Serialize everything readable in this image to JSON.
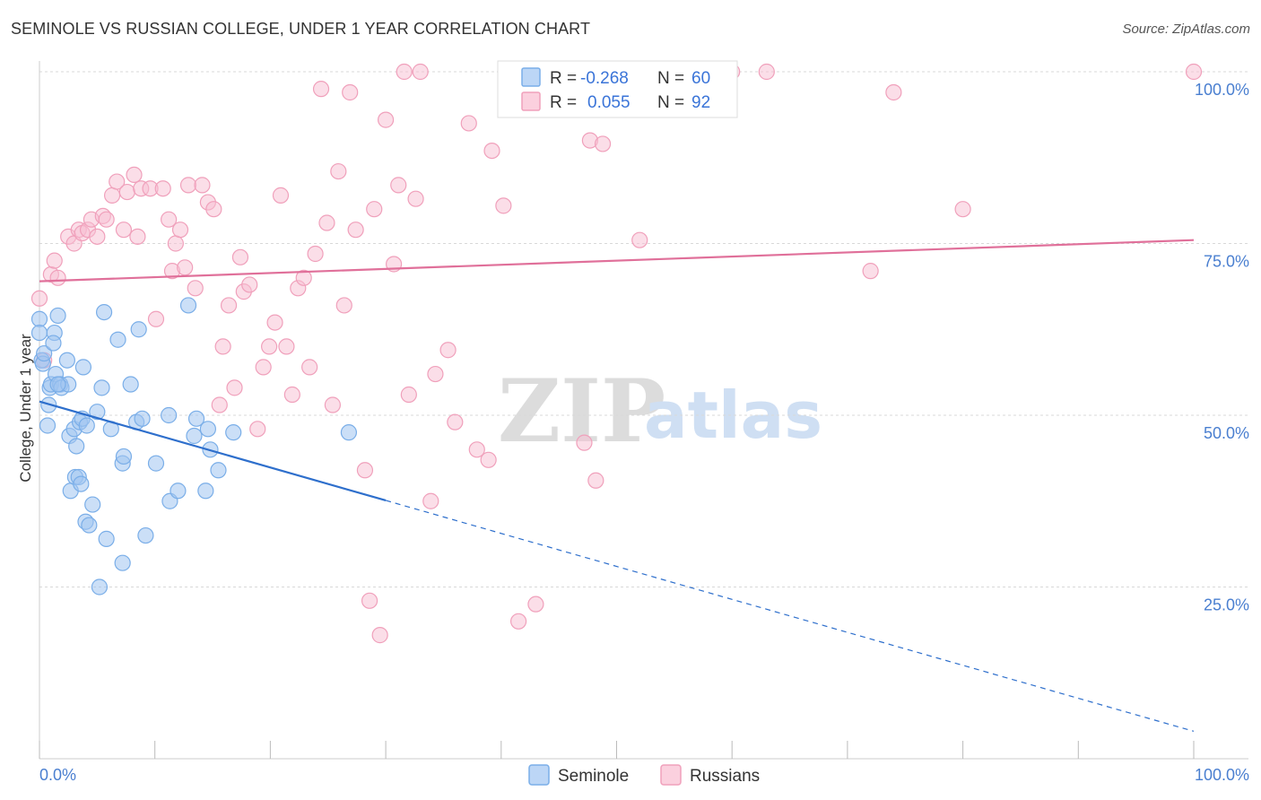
{
  "title": "SEMINOLE VS RUSSIAN COLLEGE, UNDER 1 YEAR CORRELATION CHART",
  "source": "Source: ZipAtlas.com",
  "watermark": {
    "zip": "ZIP",
    "atlas": "atlas"
  },
  "legend": {
    "r_label": "R =",
    "n_label": "N =",
    "rows": [
      {
        "series": "Seminole",
        "r": "-0.268",
        "n": "60"
      },
      {
        "series": "Russians",
        "r": "0.055",
        "n": "92"
      }
    ]
  },
  "chart_data": {
    "type": "scatter",
    "title": "SEMINOLE VS RUSSIAN COLLEGE, UNDER 1 YEAR CORRELATION CHART",
    "xlabel": "",
    "ylabel": "College, Under 1 year",
    "xlim": [
      0,
      100
    ],
    "ylim": [
      0,
      100
    ],
    "x_tick_labels": [
      "0.0%",
      "100.0%"
    ],
    "y_tick_labels": [
      {
        "value": 100,
        "label": "100.0%"
      },
      {
        "value": 75,
        "label": "75.0%"
      },
      {
        "value": 50,
        "label": "50.0%"
      },
      {
        "value": 25,
        "label": "25.0%"
      }
    ],
    "colors": {
      "Seminole": "#7aaee8",
      "Russians": "#f0a0bb",
      "Seminole_line": "#2e6fcc",
      "Russians_line": "#e0709a"
    },
    "series": [
      {
        "name": "Seminole",
        "trend": {
          "x0": 0,
          "y0": 52.0,
          "x1": 100,
          "y1": 4.0,
          "solid_until_x": 30
        },
        "points": [
          [
            0.0,
            64.0
          ],
          [
            0.0,
            62.0
          ],
          [
            0.2,
            58.0
          ],
          [
            0.3,
            57.5
          ],
          [
            0.4,
            59.0
          ],
          [
            0.7,
            48.5
          ],
          [
            0.8,
            51.5
          ],
          [
            0.9,
            54.0
          ],
          [
            1.0,
            54.5
          ],
          [
            1.3,
            62.0
          ],
          [
            1.2,
            60.5
          ],
          [
            1.4,
            56.0
          ],
          [
            1.6,
            64.5
          ],
          [
            1.8,
            54.5
          ],
          [
            1.9,
            54.0
          ],
          [
            2.4,
            58.0
          ],
          [
            2.5,
            54.5
          ],
          [
            2.6,
            47.0
          ],
          [
            2.7,
            39.0
          ],
          [
            3.0,
            48.0
          ],
          [
            3.1,
            41.0
          ],
          [
            3.2,
            45.5
          ],
          [
            3.4,
            41.0
          ],
          [
            3.5,
            49.0
          ],
          [
            3.6,
            40.0
          ],
          [
            3.7,
            49.5
          ],
          [
            3.8,
            57.0
          ],
          [
            4.0,
            34.5
          ],
          [
            4.1,
            48.5
          ],
          [
            4.3,
            34.0
          ],
          [
            4.6,
            37.0
          ],
          [
            5.0,
            50.5
          ],
          [
            5.2,
            25.0
          ],
          [
            5.4,
            54.0
          ],
          [
            5.6,
            65.0
          ],
          [
            5.8,
            32.0
          ],
          [
            6.2,
            48.0
          ],
          [
            6.8,
            61.0
          ],
          [
            7.2,
            43.0
          ],
          [
            7.3,
            44.0
          ],
          [
            7.2,
            28.5
          ],
          [
            7.9,
            54.5
          ],
          [
            8.4,
            49.0
          ],
          [
            8.6,
            62.5
          ],
          [
            8.9,
            49.5
          ],
          [
            9.2,
            32.5
          ],
          [
            10.1,
            43.0
          ],
          [
            11.2,
            50.0
          ],
          [
            11.3,
            37.5
          ],
          [
            12.0,
            39.0
          ],
          [
            12.9,
            66.0
          ],
          [
            13.4,
            47.0
          ],
          [
            13.6,
            49.5
          ],
          [
            14.4,
            39.0
          ],
          [
            14.6,
            48.0
          ],
          [
            14.8,
            45.0
          ],
          [
            15.5,
            42.0
          ],
          [
            16.8,
            47.5
          ],
          [
            26.8,
            47.5
          ],
          [
            1.6,
            54.5
          ]
        ]
      },
      {
        "name": "Russians",
        "trend": {
          "x0": 0,
          "y0": 69.5,
          "x1": 100,
          "y1": 75.5,
          "solid_until_x": 100
        },
        "points": [
          [
            0.0,
            67.0
          ],
          [
            0.4,
            58.0
          ],
          [
            1.0,
            70.5
          ],
          [
            1.3,
            72.5
          ],
          [
            1.6,
            70.0
          ],
          [
            2.5,
            76.0
          ],
          [
            3.0,
            75.0
          ],
          [
            3.4,
            77.0
          ],
          [
            3.7,
            76.5
          ],
          [
            4.2,
            77.0
          ],
          [
            4.5,
            78.5
          ],
          [
            5.0,
            76.0
          ],
          [
            5.5,
            79.0
          ],
          [
            5.8,
            78.5
          ],
          [
            6.3,
            82.0
          ],
          [
            6.7,
            84.0
          ],
          [
            7.3,
            77.0
          ],
          [
            7.6,
            82.5
          ],
          [
            8.2,
            85.0
          ],
          [
            8.5,
            76.0
          ],
          [
            8.8,
            83.0
          ],
          [
            9.6,
            83.0
          ],
          [
            10.1,
            64.0
          ],
          [
            10.7,
            83.0
          ],
          [
            11.2,
            78.5
          ],
          [
            11.5,
            71.0
          ],
          [
            11.8,
            75.0
          ],
          [
            12.2,
            77.0
          ],
          [
            12.6,
            71.5
          ],
          [
            12.9,
            83.5
          ],
          [
            13.5,
            68.5
          ],
          [
            14.1,
            83.5
          ],
          [
            14.6,
            81.0
          ],
          [
            15.1,
            80.0
          ],
          [
            15.6,
            51.5
          ],
          [
            15.9,
            60.0
          ],
          [
            16.4,
            66.0
          ],
          [
            16.9,
            54.0
          ],
          [
            17.4,
            73.0
          ],
          [
            17.7,
            68.0
          ],
          [
            18.2,
            69.0
          ],
          [
            18.9,
            48.0
          ],
          [
            19.4,
            57.0
          ],
          [
            19.9,
            60.0
          ],
          [
            20.4,
            63.5
          ],
          [
            20.9,
            82.0
          ],
          [
            21.4,
            60.0
          ],
          [
            21.9,
            53.0
          ],
          [
            22.4,
            68.5
          ],
          [
            22.9,
            70.0
          ],
          [
            23.4,
            57.0
          ],
          [
            23.9,
            73.5
          ],
          [
            24.4,
            97.5
          ],
          [
            24.9,
            78.0
          ],
          [
            25.4,
            51.5
          ],
          [
            25.9,
            85.5
          ],
          [
            26.4,
            66.0
          ],
          [
            26.9,
            97.0
          ],
          [
            27.4,
            77.0
          ],
          [
            28.2,
            42.0
          ],
          [
            28.6,
            23.0
          ],
          [
            29.0,
            80.0
          ],
          [
            29.5,
            18.0
          ],
          [
            30.0,
            93.0
          ],
          [
            30.7,
            72.0
          ],
          [
            31.1,
            83.5
          ],
          [
            31.6,
            100.0
          ],
          [
            32.0,
            53.0
          ],
          [
            32.6,
            81.5
          ],
          [
            33.0,
            100.0
          ],
          [
            33.9,
            37.5
          ],
          [
            34.3,
            56.0
          ],
          [
            35.4,
            59.5
          ],
          [
            36.0,
            49.0
          ],
          [
            37.2,
            92.5
          ],
          [
            37.9,
            45.0
          ],
          [
            38.9,
            43.5
          ],
          [
            39.2,
            88.5
          ],
          [
            40.2,
            80.5
          ],
          [
            41.5,
            20.0
          ],
          [
            43.0,
            22.5
          ],
          [
            46.0,
            100.0
          ],
          [
            47.2,
            46.0
          ],
          [
            47.7,
            90.0
          ],
          [
            48.2,
            40.5
          ],
          [
            48.8,
            89.5
          ],
          [
            52.0,
            75.5
          ],
          [
            60.0,
            100.0
          ],
          [
            63.0,
            100.0
          ],
          [
            72.0,
            71.0
          ],
          [
            74.0,
            97.0
          ],
          [
            80.0,
            80.0
          ],
          [
            100.0,
            100.0
          ]
        ]
      }
    ]
  },
  "bottom_legend": [
    {
      "series": "Seminole",
      "label": "Seminole"
    },
    {
      "series": "Russians",
      "label": "Russians"
    }
  ]
}
